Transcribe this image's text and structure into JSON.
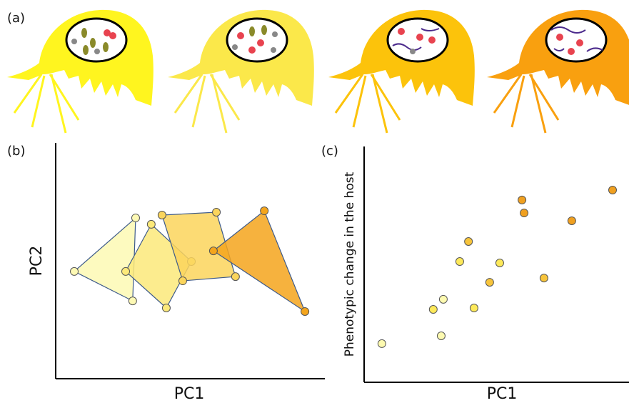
{
  "panel_a": {
    "label": "(a)"
  },
  "chart_data": [
    {
      "type": "polygon",
      "panel_label": "(b)",
      "x_label": "PC1",
      "y_label": "PC2",
      "xlim": [
        0,
        100
      ],
      "ylim": [
        0,
        100
      ],
      "series": [
        {
          "color": "#fdf9b4",
          "x": [
            6.9,
            29.7,
            28.6
          ],
          "values": [
            45.5,
            68.2,
            33.0
          ]
        },
        {
          "color": "#fce97a",
          "x": [
            35.5,
            26.0,
            41.1,
            50.4
          ],
          "values": [
            65.5,
            45.5,
            30.0,
            49.7
          ]
        },
        {
          "color": "#fbd55c",
          "x": [
            39.5,
            59.7,
            66.8,
            47.2
          ],
          "values": [
            69.4,
            70.6,
            43.3,
            41.5
          ]
        },
        {
          "color": "#f4a51c",
          "x": [
            77.5,
            92.6,
            58.6
          ],
          "values": [
            71.2,
            28.5,
            54.2
          ]
        }
      ]
    },
    {
      "type": "scatter",
      "panel_label": "(c)",
      "x_label": "PC1",
      "y_label": "Phenotypic change in the host",
      "xlim": [
        0,
        100
      ],
      "ylim": [
        0,
        100
      ],
      "series": [
        {
          "color": "#fdfab0",
          "x": [
            6.7,
            29.1,
            29.9
          ],
          "values": [
            16.4,
            19.7,
            35.2
          ]
        },
        {
          "color": "#fde95a",
          "x": [
            26.1,
            36.1,
            41.5,
            51.2
          ],
          "values": [
            30.9,
            51.2,
            31.5,
            50.6
          ]
        },
        {
          "color": "#f7c43b",
          "x": [
            47.4,
            39.4,
            67.9
          ],
          "values": [
            42.4,
            59.7,
            44.2
          ]
        },
        {
          "color": "#f0a020",
          "x": [
            59.6,
            60.4,
            78.4,
            93.8
          ],
          "values": [
            77.3,
            71.8,
            68.5,
            81.5
          ]
        }
      ]
    }
  ]
}
